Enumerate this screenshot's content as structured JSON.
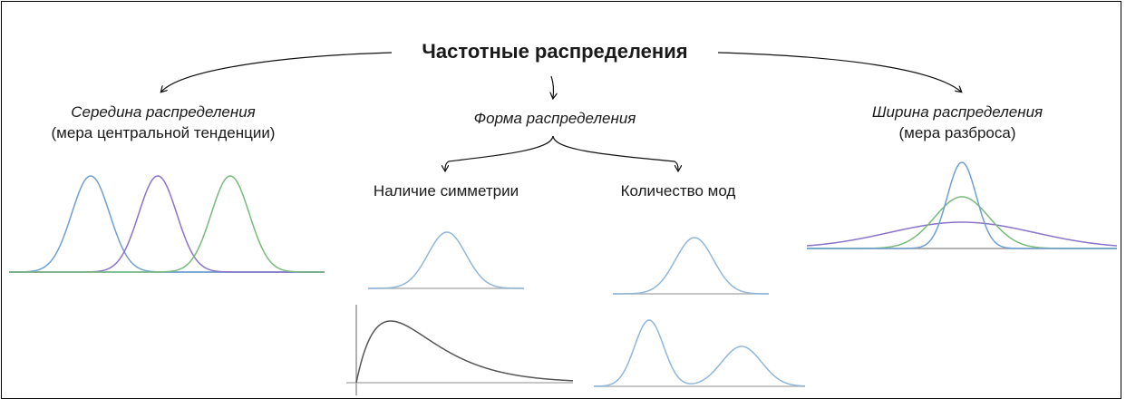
{
  "title": "Частотные распределения",
  "center": {
    "title": "Середина распределения",
    "subtitle": "(мера центральной тенденции)"
  },
  "shape": {
    "title": "Форма распределения",
    "symmetry": "Наличие симметрии",
    "modes": "Количество мод"
  },
  "width": {
    "title": "Ширина распределения",
    "subtitle": "(мера разброса)"
  },
  "colors": {
    "blue": "#6f9fd0",
    "purple": "#8a73c9",
    "green": "#77ba7a",
    "light_blue": "#90b6da",
    "dark_grey": "#555555",
    "axis_grey": "#b4b4b4"
  }
}
